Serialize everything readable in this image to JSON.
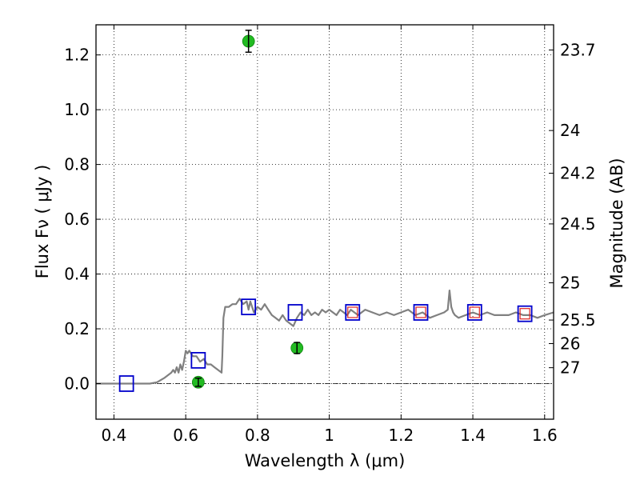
{
  "chart_data": {
    "type": "scatter",
    "title": "",
    "xlabel": "Wavelength  λ (μm)",
    "ylabel": "Flux  Fν  ( μJy )",
    "y2label": "Magnitude (AB)",
    "xlim": [
      0.35,
      1.625
    ],
    "ylim": [
      -0.13,
      1.31
    ],
    "grid": true,
    "x_ticks": [
      0.4,
      0.6,
      0.8,
      1.0,
      1.2,
      1.4,
      1.6
    ],
    "x_tick_labels": [
      "0.4",
      "0.6",
      "0.8",
      "1",
      "1.2",
      "1.4",
      "1.6"
    ],
    "y_ticks": [
      0.0,
      0.2,
      0.4,
      0.6,
      0.8,
      1.0,
      1.2
    ],
    "y_tick_labels": [
      "0.0",
      "0.2",
      "0.4",
      "0.6",
      "0.8",
      "1.0",
      "1.2"
    ],
    "right_axis_ticks": [
      {
        "label": "23.7",
        "flux": 1.218
      },
      {
        "label": "24",
        "flux": 0.924
      },
      {
        "label": "24.2",
        "flux": 0.768
      },
      {
        "label": "24.5",
        "flux": 0.583
      },
      {
        "label": "25",
        "flux": 0.368
      },
      {
        "label": "25.5",
        "flux": 0.232
      },
      {
        "label": "26",
        "flux": 0.146
      },
      {
        "label": "27",
        "flux": 0.058
      }
    ],
    "series": [
      {
        "kind": "model_sed_line",
        "color": "#808080",
        "x": [
          0.35,
          0.4,
          0.45,
          0.5,
          0.52,
          0.54,
          0.56,
          0.565,
          0.57,
          0.575,
          0.58,
          0.585,
          0.59,
          0.595,
          0.6,
          0.605,
          0.61,
          0.62,
          0.63,
          0.64,
          0.65,
          0.66,
          0.67,
          0.68,
          0.69,
          0.7,
          0.702,
          0.705,
          0.71,
          0.72,
          0.73,
          0.74,
          0.75,
          0.76,
          0.77,
          0.775,
          0.78,
          0.79,
          0.8,
          0.81,
          0.82,
          0.83,
          0.84,
          0.85,
          0.86,
          0.87,
          0.88,
          0.89,
          0.9,
          0.91,
          0.92,
          0.93,
          0.94,
          0.95,
          0.96,
          0.97,
          0.98,
          0.99,
          1.0,
          1.01,
          1.02,
          1.03,
          1.04,
          1.05,
          1.06,
          1.07,
          1.08,
          1.09,
          1.1,
          1.12,
          1.14,
          1.16,
          1.18,
          1.2,
          1.22,
          1.24,
          1.26,
          1.28,
          1.3,
          1.32,
          1.33,
          1.335,
          1.34,
          1.345,
          1.35,
          1.36,
          1.38,
          1.4,
          1.42,
          1.44,
          1.46,
          1.48,
          1.5,
          1.52,
          1.54,
          1.56,
          1.58,
          1.6,
          1.625
        ],
        "y": [
          0.0,
          0.0,
          0.0,
          0.0,
          0.005,
          0.02,
          0.04,
          0.05,
          0.04,
          0.06,
          0.04,
          0.07,
          0.05,
          0.08,
          0.12,
          0.11,
          0.12,
          0.1,
          0.1,
          0.08,
          0.09,
          0.07,
          0.07,
          0.06,
          0.05,
          0.04,
          0.1,
          0.24,
          0.28,
          0.28,
          0.29,
          0.29,
          0.31,
          0.29,
          0.3,
          0.27,
          0.3,
          0.26,
          0.28,
          0.27,
          0.29,
          0.27,
          0.25,
          0.24,
          0.23,
          0.25,
          0.23,
          0.22,
          0.21,
          0.24,
          0.26,
          0.25,
          0.27,
          0.25,
          0.26,
          0.25,
          0.27,
          0.26,
          0.27,
          0.26,
          0.25,
          0.27,
          0.26,
          0.25,
          0.27,
          0.26,
          0.25,
          0.26,
          0.27,
          0.26,
          0.25,
          0.26,
          0.25,
          0.26,
          0.27,
          0.25,
          0.26,
          0.24,
          0.25,
          0.26,
          0.27,
          0.34,
          0.28,
          0.26,
          0.25,
          0.24,
          0.25,
          0.26,
          0.25,
          0.26,
          0.25,
          0.25,
          0.25,
          0.26,
          0.25,
          0.25,
          0.24,
          0.25,
          0.26
        ]
      },
      {
        "kind": "model_photometry_squares",
        "edge_color": "#0000cc",
        "x": [
          0.435,
          0.635,
          0.775,
          0.905,
          1.065,
          1.255,
          1.405,
          1.545
        ],
        "y": [
          0.0,
          0.085,
          0.28,
          0.26,
          0.26,
          0.26,
          0.26,
          0.255
        ]
      },
      {
        "kind": "highlighted_model_squares",
        "edge_color": "#dd2222",
        "x": [
          1.065,
          1.255,
          1.405,
          1.545
        ],
        "y": [
          0.26,
          0.26,
          0.26,
          0.255
        ]
      },
      {
        "kind": "observed_points",
        "color": "#22bb22",
        "x": [
          0.635,
          0.775,
          0.91
        ],
        "y": [
          0.005,
          1.25,
          0.13
        ],
        "yerr": [
          0.015,
          0.04,
          0.02
        ]
      }
    ]
  }
}
